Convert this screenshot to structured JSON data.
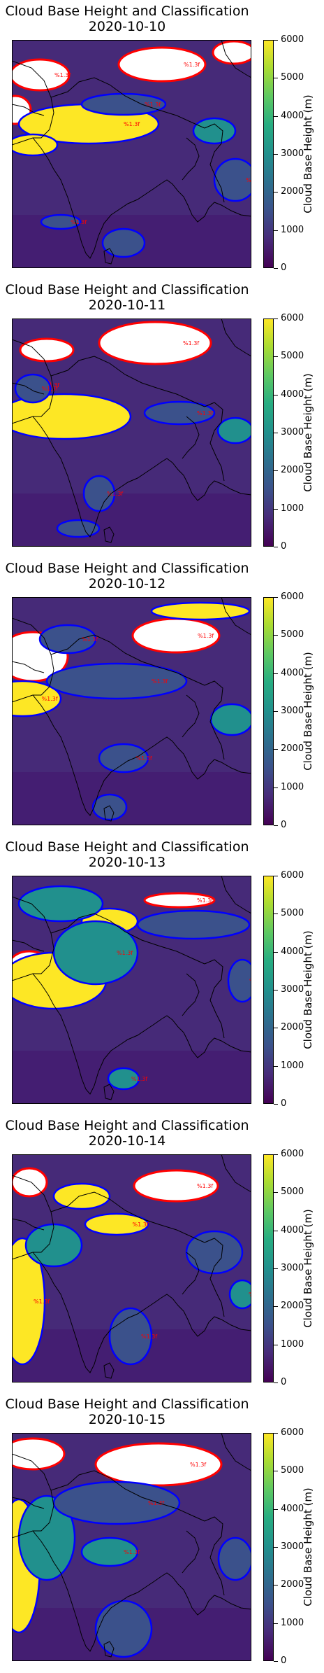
{
  "figure": {
    "title": "Cloud Base Height and Classification",
    "colorbar": {
      "label": "Cloud Base Height (m)",
      "ticks": [
        "0",
        "1000",
        "2000",
        "3000",
        "4000",
        "5000",
        "6000"
      ],
      "vmin": 0,
      "vmax": 6000,
      "colormap": [
        "#440154",
        "#472c7a",
        "#3b518b",
        "#2c718e",
        "#21908d",
        "#27ad81",
        "#5cc863",
        "#aadc32",
        "#fde725"
      ]
    },
    "contour_colors": {
      "low_cloud": "#0000ff",
      "high_cloud": "#ff0000"
    },
    "contour_label": "%1.3f"
  },
  "chart_data": [
    {
      "type": "heatmap",
      "title": "Cloud Base Height and Classification",
      "subtitle": "2020-10-10",
      "zlabel": "Cloud Base Height (m)",
      "zlim": [
        0,
        6000
      ]
    },
    {
      "type": "heatmap",
      "title": "Cloud Base Height and Classification",
      "subtitle": "2020-10-11",
      "zlabel": "Cloud Base Height (m)",
      "zlim": [
        0,
        6000
      ]
    },
    {
      "type": "heatmap",
      "title": "Cloud Base Height and Classification",
      "subtitle": "2020-10-12",
      "zlabel": "Cloud Base Height (m)",
      "zlim": [
        0,
        6000
      ]
    },
    {
      "type": "heatmap",
      "title": "Cloud Base Height and Classification",
      "subtitle": "2020-10-13",
      "zlabel": "Cloud Base Height (m)",
      "zlim": [
        0,
        6000
      ]
    },
    {
      "type": "heatmap",
      "title": "Cloud Base Height and Classification",
      "subtitle": "2020-10-14",
      "zlabel": "Cloud Base Height (m)",
      "zlim": [
        0,
        6000
      ]
    },
    {
      "type": "heatmap",
      "title": "Cloud Base Height and Classification",
      "subtitle": "2020-10-15",
      "zlabel": "Cloud Base Height (m)",
      "zlim": [
        0,
        6000
      ]
    }
  ]
}
